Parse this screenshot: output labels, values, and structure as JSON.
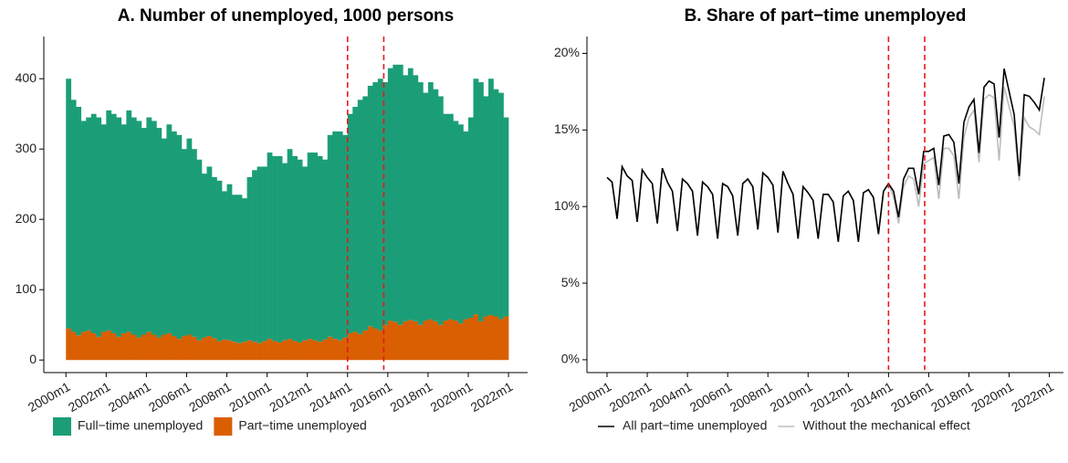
{
  "chart_data": [
    {
      "type": "stacked-bar",
      "title": "A. Number of unemployed, 1000 persons",
      "legend": "bottom",
      "x": [
        2000,
        2000.25,
        2000.5,
        2000.75,
        2001,
        2001.25,
        2001.5,
        2001.75,
        2002,
        2002.25,
        2002.5,
        2002.75,
        2003,
        2003.25,
        2003.5,
        2003.75,
        2004,
        2004.25,
        2004.5,
        2004.75,
        2005,
        2005.25,
        2005.5,
        2005.75,
        2006,
        2006.25,
        2006.5,
        2006.75,
        2007,
        2007.25,
        2007.5,
        2007.75,
        2008,
        2008.25,
        2008.5,
        2008.75,
        2009,
        2009.25,
        2009.5,
        2009.75,
        2010,
        2010.25,
        2010.5,
        2010.75,
        2011,
        2011.25,
        2011.5,
        2011.75,
        2012,
        2012.25,
        2012.5,
        2012.75,
        2013,
        2013.25,
        2013.5,
        2013.75,
        2014,
        2014.25,
        2014.5,
        2014.75,
        2015,
        2015.25,
        2015.5,
        2015.75,
        2016,
        2016.25,
        2016.5,
        2016.75,
        2017,
        2017.25,
        2017.5,
        2017.75,
        2018,
        2018.25,
        2018.5,
        2018.75,
        2019,
        2019.25,
        2019.5,
        2019.75,
        2020,
        2020.25,
        2020.5,
        2020.75,
        2021,
        2021.25,
        2021.5,
        2021.75
      ],
      "series": [
        {
          "name": "Part−time unemployed",
          "color": "#d95f02",
          "values": [
            45,
            40,
            35,
            40,
            42,
            38,
            33,
            40,
            42,
            38,
            33,
            38,
            40,
            36,
            32,
            36,
            40,
            36,
            32,
            36,
            38,
            34,
            30,
            34,
            36,
            33,
            28,
            32,
            34,
            31,
            27,
            29,
            28,
            26,
            24,
            26,
            28,
            26,
            24,
            27,
            30,
            27,
            25,
            28,
            30,
            27,
            25,
            28,
            30,
            28,
            26,
            29,
            33,
            30,
            28,
            32,
            38,
            40,
            37,
            42,
            48,
            45,
            42,
            50,
            56,
            54,
            50,
            55,
            57,
            55,
            50,
            56,
            58,
            55,
            50,
            56,
            58,
            56,
            52,
            58,
            60,
            65,
            55,
            62,
            64,
            62,
            58,
            62
          ]
        },
        {
          "name": "Full−time unemployed",
          "color": "#1b9e77",
          "values": [
            355,
            330,
            325,
            300,
            303,
            312,
            312,
            295,
            313,
            312,
            312,
            297,
            315,
            309,
            308,
            294,
            305,
            304,
            298,
            279,
            297,
            291,
            290,
            266,
            279,
            267,
            257,
            233,
            241,
            229,
            228,
            211,
            222,
            209,
            211,
            204,
            232,
            244,
            251,
            248,
            265,
            263,
            265,
            252,
            270,
            263,
            260,
            247,
            265,
            267,
            264,
            256,
            287,
            295,
            297,
            288,
            312,
            320,
            333,
            333,
            342,
            350,
            358,
            345,
            359,
            366,
            370,
            350,
            358,
            350,
            345,
            324,
            337,
            330,
            325,
            294,
            292,
            284,
            283,
            267,
            285,
            335,
            340,
            313,
            336,
            323,
            322,
            283
          ]
        }
      ],
      "xlim": [
        1998.9,
        2022.95
      ],
      "ylim": [
        -14,
        460
      ],
      "yticks": [
        0,
        100,
        200,
        300,
        400
      ],
      "xticks": [
        {
          "value": 2000,
          "label": "2000m1"
        },
        {
          "value": 2002,
          "label": "2002m1"
        },
        {
          "value": 2004,
          "label": "2004m1"
        },
        {
          "value": 2006,
          "label": "2006m1"
        },
        {
          "value": 2008,
          "label": "2008m1"
        },
        {
          "value": 2010,
          "label": "2010m1"
        },
        {
          "value": 2012,
          "label": "2012m1"
        },
        {
          "value": 2014,
          "label": "2014m1"
        },
        {
          "value": 2016,
          "label": "2016m1"
        },
        {
          "value": 2018,
          "label": "2018m1"
        },
        {
          "value": 2020,
          "label": "2020m1"
        },
        {
          "value": 2022,
          "label": "2022m1"
        }
      ],
      "vlines": [
        2014,
        2015.8
      ],
      "vline_color": "#e41a1c"
    },
    {
      "type": "line",
      "title": "B. Share of part−time unemployed",
      "legend": "bottom",
      "x": [
        2000,
        2000.25,
        2000.5,
        2000.75,
        2001,
        2001.25,
        2001.5,
        2001.75,
        2002,
        2002.25,
        2002.5,
        2002.75,
        2003,
        2003.25,
        2003.5,
        2003.75,
        2004,
        2004.25,
        2004.5,
        2004.75,
        2005,
        2005.25,
        2005.5,
        2005.75,
        2006,
        2006.25,
        2006.5,
        2006.75,
        2007,
        2007.25,
        2007.5,
        2007.75,
        2008,
        2008.25,
        2008.5,
        2008.75,
        2009,
        2009.25,
        2009.5,
        2009.75,
        2010,
        2010.25,
        2010.5,
        2010.75,
        2011,
        2011.25,
        2011.5,
        2011.75,
        2012,
        2012.25,
        2012.5,
        2012.75,
        2013,
        2013.25,
        2013.5,
        2013.75,
        2014,
        2014.25,
        2014.5,
        2014.75,
        2015,
        2015.25,
        2015.5,
        2015.75,
        2016,
        2016.25,
        2016.5,
        2016.75,
        2017,
        2017.25,
        2017.5,
        2017.75,
        2018,
        2018.25,
        2018.5,
        2018.75,
        2019,
        2019.25,
        2019.5,
        2019.75,
        2020,
        2020.25,
        2020.5,
        2020.75,
        2021,
        2021.25,
        2021.5,
        2021.75
      ],
      "series": [
        {
          "name": "Without the mechanical effect",
          "color": "#bdbdbd",
          "values": [
            11.9,
            11.6,
            9.2,
            12.6,
            12.0,
            11.7,
            9.0,
            12.4,
            11.9,
            11.5,
            8.9,
            12.5,
            11.6,
            11.0,
            8.4,
            11.8,
            11.5,
            11.0,
            8.1,
            11.6,
            11.3,
            10.8,
            7.9,
            11.5,
            11.3,
            10.7,
            8.1,
            11.5,
            11.8,
            11.3,
            8.5,
            12.2,
            11.9,
            11.4,
            8.3,
            12.3,
            11.5,
            10.8,
            7.9,
            11.3,
            10.9,
            10.4,
            7.9,
            10.8,
            10.8,
            10.3,
            7.7,
            10.7,
            11.0,
            10.4,
            7.7,
            10.9,
            11.1,
            10.6,
            8.2,
            11.0,
            11.5,
            10.6,
            8.9,
            11.3,
            12.0,
            11.8,
            10.0,
            12.8,
            13.0,
            13.2,
            10.5,
            13.8,
            13.8,
            13.3,
            10.5,
            14.5,
            15.8,
            16.3,
            12.9,
            17.0,
            17.3,
            17.1,
            13.0,
            17.8,
            16.5,
            15.2,
            11.7,
            15.8,
            15.2,
            15.0,
            14.7,
            17.2
          ]
        },
        {
          "name": "All part−time unemployed",
          "color": "#000000",
          "values": [
            11.9,
            11.6,
            9.2,
            12.6,
            12.0,
            11.7,
            9.0,
            12.4,
            11.9,
            11.5,
            8.9,
            12.5,
            11.6,
            11.0,
            8.4,
            11.8,
            11.5,
            11.0,
            8.1,
            11.6,
            11.3,
            10.8,
            7.9,
            11.5,
            11.3,
            10.7,
            8.1,
            11.5,
            11.8,
            11.3,
            8.5,
            12.2,
            11.9,
            11.4,
            8.3,
            12.3,
            11.5,
            10.8,
            7.9,
            11.3,
            10.9,
            10.4,
            7.9,
            10.8,
            10.8,
            10.3,
            7.7,
            10.7,
            11.0,
            10.4,
            7.7,
            10.9,
            11.1,
            10.6,
            8.2,
            11.0,
            11.5,
            11.0,
            9.3,
            11.8,
            12.5,
            12.5,
            10.8,
            13.6,
            13.6,
            13.8,
            11.4,
            14.6,
            14.7,
            14.2,
            11.5,
            15.5,
            16.5,
            17.0,
            13.5,
            17.8,
            18.2,
            18.0,
            14.5,
            19.0,
            17.5,
            16.0,
            12.0,
            17.3,
            17.2,
            16.8,
            16.3,
            18.4
          ]
        }
      ],
      "xlim": [
        1999.0,
        2022.7
      ],
      "ylim": [
        -0.66,
        21.1
      ],
      "yticks": [
        {
          "value": 0,
          "label": "0%"
        },
        {
          "value": 5,
          "label": "5%"
        },
        {
          "value": 10,
          "label": "10%"
        },
        {
          "value": 15,
          "label": "15%"
        },
        {
          "value": 20,
          "label": "20%"
        }
      ],
      "xticks": [
        {
          "value": 2000,
          "label": "2000m1"
        },
        {
          "value": 2002,
          "label": "2002m1"
        },
        {
          "value": 2004,
          "label": "2004m1"
        },
        {
          "value": 2006,
          "label": "2006m1"
        },
        {
          "value": 2008,
          "label": "2008m1"
        },
        {
          "value": 2010,
          "label": "2010m1"
        },
        {
          "value": 2012,
          "label": "2012m1"
        },
        {
          "value": 2014,
          "label": "2014m1"
        },
        {
          "value": 2016,
          "label": "2016m1"
        },
        {
          "value": 2018,
          "label": "2018m1"
        },
        {
          "value": 2020,
          "label": "2020m1"
        },
        {
          "value": 2022,
          "label": "2022m1"
        }
      ],
      "vlines": [
        2014,
        2015.8
      ],
      "vline_color": "#e41a1c"
    }
  ]
}
